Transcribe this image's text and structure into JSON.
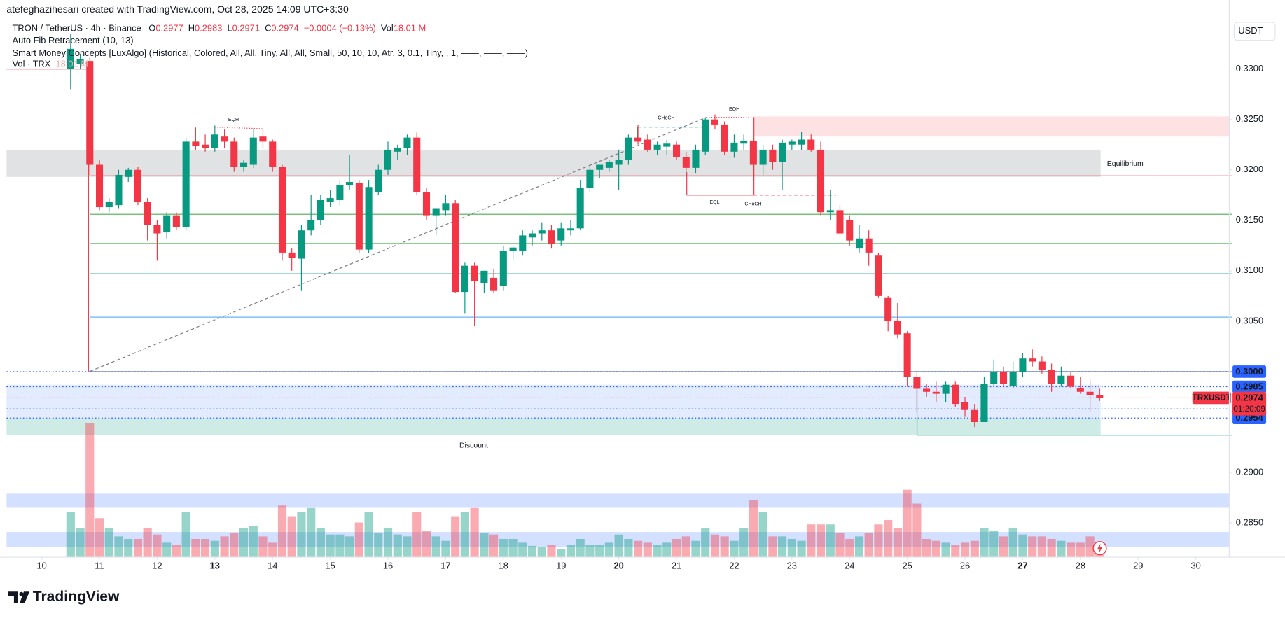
{
  "header": "atefeghazihesari created with TradingView.com, Oct 28, 2025 14:09 UTC+3:30",
  "chart_data": {
    "type": "candlestick",
    "legend": {
      "symbol": "TRON / TetherUS · 4h · Binance",
      "ohlc": [
        {
          "label": "O",
          "value": "0.2977"
        },
        {
          "label": "H",
          "value": "0.2983"
        },
        {
          "label": "L",
          "value": "0.2971"
        },
        {
          "label": "C",
          "value": "0.2974"
        }
      ],
      "change": "−0.0004 (−0.13%)",
      "vol_label": "Vol",
      "vol": "18.01 M",
      "indicators": [
        "Auto Fib Retracement (10, 13)",
        "Smart Money Concepts [LuxAlgo] (Historical, Colored, All, All, Tiny, All, All, Small, 50, 10, 10, Atr, 3, 0.1, Tiny, , 1, ——, ——, ——)"
      ],
      "volume_name": "Vol · TRX",
      "volume_value": "18.01 M"
    },
    "currency": "USDT",
    "brand": "TradingView",
    "up_color": "#089981",
    "down_color": "#f23645",
    "grid": false,
    "xlim": [
      9.39,
      30.58
    ],
    "xticks": [
      10,
      11,
      12,
      13,
      14,
      15,
      16,
      17,
      18,
      19,
      20,
      21,
      22,
      23,
      24,
      25,
      26,
      27,
      28,
      29,
      30
    ],
    "xticks_bold": [
      13,
      20,
      27
    ],
    "ylim": [
      0.2816,
      0.3352
    ],
    "yticks": [
      {
        "value": 0.33,
        "label": "0.3300"
      },
      {
        "value": 0.325,
        "label": "0.3250"
      },
      {
        "value": 0.32,
        "label": "0.3200"
      },
      {
        "value": 0.315,
        "label": "0.3150"
      },
      {
        "value": 0.31,
        "label": "0.3100"
      },
      {
        "value": 0.305,
        "label": "0.3050"
      },
      {
        "value": 0.29,
        "label": "0.2900"
      },
      {
        "value": 0.285,
        "label": "0.2850"
      }
    ],
    "x": [
      10.5,
      10.667,
      10.833,
      11,
      11.167,
      11.333,
      11.5,
      11.667,
      11.833,
      12,
      12.167,
      12.333,
      12.5,
      12.667,
      12.833,
      13,
      13.167,
      13.333,
      13.5,
      13.667,
      13.833,
      14,
      14.167,
      14.333,
      14.5,
      14.667,
      14.833,
      15,
      15.167,
      15.333,
      15.5,
      15.667,
      15.833,
      16,
      16.167,
      16.333,
      16.5,
      16.667,
      16.833,
      17,
      17.167,
      17.333,
      17.5,
      17.667,
      17.833,
      18,
      18.167,
      18.333,
      18.5,
      18.667,
      18.833,
      19,
      19.167,
      19.333,
      19.5,
      19.667,
      19.833,
      20,
      20.167,
      20.333,
      20.5,
      20.667,
      20.833,
      21,
      21.167,
      21.333,
      21.5,
      21.667,
      21.833,
      22,
      22.167,
      22.333,
      22.5,
      22.667,
      22.833,
      23,
      23.167,
      23.333,
      23.5,
      23.667,
      23.833,
      24,
      24.167,
      24.333,
      24.5,
      24.667,
      24.833,
      25,
      25.167,
      25.333,
      25.5,
      25.667,
      25.833,
      26,
      26.167,
      26.333,
      26.5,
      26.667,
      26.833,
      27,
      27.167,
      27.333,
      27.5,
      27.667,
      27.833,
      28,
      28.167,
      28.333
    ],
    "open": [
      0.33,
      0.3305,
      0.3308,
      0.3205,
      0.3163,
      0.3165,
      0.3193,
      0.32,
      0.3168,
      0.3145,
      0.3138,
      0.3155,
      0.3143,
      0.3228,
      0.3225,
      0.3222,
      0.3233,
      0.3228,
      0.3203,
      0.3205,
      0.3233,
      0.3228,
      0.3203,
      0.3118,
      0.3112,
      0.314,
      0.315,
      0.3168,
      0.317,
      0.3185,
      0.3187,
      0.3121,
      0.3178,
      0.32,
      0.3218,
      0.3222,
      0.3232,
      0.3178,
      0.3155,
      0.316,
      0.3167,
      0.3079,
      0.3105,
      0.3088,
      0.3093,
      0.3085,
      0.312,
      0.312,
      0.3133,
      0.3137,
      0.314,
      0.313,
      0.314,
      0.3142,
      0.3182,
      0.32,
      0.3202,
      0.3205,
      0.321,
      0.3232,
      0.323,
      0.322,
      0.3223,
      0.3225,
      0.3213,
      0.3202,
      0.3218,
      0.325,
      0.3245,
      0.3218,
      0.3226,
      0.3229,
      0.3205,
      0.322,
      0.3208,
      0.3225,
      0.3225,
      0.323,
      0.322,
      0.3158,
      0.316,
      0.315,
      0.3122,
      0.3132,
      0.3115,
      0.3073,
      0.305,
      0.3038,
      0.2995,
      0.2983,
      0.298,
      0.2978,
      0.2987,
      0.297,
      0.2962,
      0.295,
      0.2988,
      0.3,
      0.2986,
      0.3,
      0.3013,
      0.301,
      0.3002,
      0.2988,
      0.2996,
      0.2984,
      0.298,
      0.2977
    ],
    "high": [
      0.3335,
      0.3315,
      0.3312,
      0.321,
      0.3172,
      0.32,
      0.3202,
      0.3203,
      0.3172,
      0.315,
      0.3158,
      0.3158,
      0.3232,
      0.3242,
      0.3235,
      0.3244,
      0.324,
      0.3232,
      0.321,
      0.324,
      0.324,
      0.323,
      0.3205,
      0.3122,
      0.3145,
      0.3175,
      0.3175,
      0.318,
      0.319,
      0.3215,
      0.319,
      0.319,
      0.3205,
      0.3228,
      0.3225,
      0.3235,
      0.3237,
      0.3182,
      0.316,
      0.3175,
      0.317,
      0.3108,
      0.3108,
      0.31,
      0.3102,
      0.3125,
      0.3125,
      0.314,
      0.314,
      0.3148,
      0.3145,
      0.3148,
      0.315,
      0.319,
      0.3205,
      0.3205,
      0.321,
      0.322,
      0.3235,
      0.3245,
      0.3235,
      0.3228,
      0.323,
      0.3228,
      0.3218,
      0.3225,
      0.3252,
      0.3255,
      0.3248,
      0.3235,
      0.3235,
      0.3232,
      0.3225,
      0.3225,
      0.323,
      0.323,
      0.3238,
      0.3235,
      0.3228,
      0.318,
      0.3165,
      0.3155,
      0.3145,
      0.314,
      0.3118,
      0.3075,
      0.3068,
      0.304,
      0.3,
      0.2988,
      0.299,
      0.299,
      0.299,
      0.2975,
      0.2968,
      0.2995,
      0.3012,
      0.3005,
      0.301,
      0.3018,
      0.3022,
      0.3015,
      0.3008,
      0.3005,
      0.3,
      0.2995,
      0.2992,
      0.2983
    ],
    "low": [
      0.328,
      0.33,
      0.3195,
      0.316,
      0.3158,
      0.3162,
      0.3188,
      0.3165,
      0.313,
      0.311,
      0.3132,
      0.314,
      0.314,
      0.322,
      0.3218,
      0.3218,
      0.3222,
      0.3198,
      0.3198,
      0.3202,
      0.3222,
      0.3198,
      0.311,
      0.31,
      0.308,
      0.3135,
      0.3145,
      0.3163,
      0.3165,
      0.318,
      0.3118,
      0.3118,
      0.3175,
      0.3195,
      0.321,
      0.3215,
      0.3175,
      0.315,
      0.3135,
      0.3155,
      0.3078,
      0.3058,
      0.3045,
      0.3078,
      0.3078,
      0.308,
      0.311,
      0.3115,
      0.3125,
      0.313,
      0.3122,
      0.3125,
      0.3135,
      0.314,
      0.3178,
      0.3192,
      0.3198,
      0.318,
      0.3205,
      0.3225,
      0.3218,
      0.3215,
      0.3215,
      0.321,
      0.3195,
      0.3197,
      0.3215,
      0.324,
      0.3215,
      0.3212,
      0.322,
      0.319,
      0.3195,
      0.32,
      0.318,
      0.322,
      0.322,
      0.3218,
      0.3155,
      0.315,
      0.3135,
      0.3125,
      0.3118,
      0.3105,
      0.3073,
      0.304,
      0.3033,
      0.2985,
      0.296,
      0.2975,
      0.297,
      0.297,
      0.2965,
      0.2955,
      0.2945,
      0.295,
      0.2985,
      0.2985,
      0.2983,
      0.2995,
      0.3005,
      0.2998,
      0.298,
      0.2985,
      0.2983,
      0.2978,
      0.296,
      0.2971
    ],
    "close": [
      0.332,
      0.331,
      0.3205,
      0.3163,
      0.3168,
      0.3195,
      0.32,
      0.3168,
      0.3145,
      0.3137,
      0.3155,
      0.3143,
      0.3228,
      0.3224,
      0.3222,
      0.3235,
      0.3228,
      0.3203,
      0.3207,
      0.3232,
      0.3228,
      0.3203,
      0.3118,
      0.3113,
      0.314,
      0.315,
      0.317,
      0.3172,
      0.3185,
      0.3188,
      0.3121,
      0.3183,
      0.32,
      0.322,
      0.3222,
      0.3232,
      0.3178,
      0.3155,
      0.3162,
      0.3167,
      0.3079,
      0.3105,
      0.309,
      0.31,
      0.308,
      0.312,
      0.3123,
      0.3135,
      0.3137,
      0.314,
      0.3127,
      0.3142,
      0.3142,
      0.3182,
      0.32,
      0.3205,
      0.3208,
      0.321,
      0.3232,
      0.3228,
      0.322,
      0.3225,
      0.3226,
      0.3213,
      0.3202,
      0.322,
      0.325,
      0.3245,
      0.3218,
      0.3227,
      0.3229,
      0.3205,
      0.322,
      0.3208,
      0.3227,
      0.3228,
      0.323,
      0.322,
      0.3158,
      0.316,
      0.3137,
      0.313,
      0.3132,
      0.3118,
      0.3075,
      0.305,
      0.3037,
      0.2995,
      0.2983,
      0.298,
      0.2978,
      0.2987,
      0.2968,
      0.2962,
      0.295,
      0.2988,
      0.3,
      0.2988,
      0.3,
      0.3013,
      0.301,
      0.3002,
      0.2988,
      0.2996,
      0.2985,
      0.298,
      0.2977,
      0.2974
    ],
    "volume": [
      72,
      46,
      213,
      62,
      46,
      33,
      29,
      29,
      46,
      36,
      23,
      20,
      72,
      29,
      29,
      26,
      33,
      39,
      46,
      49,
      33,
      23,
      82,
      65,
      72,
      78,
      46,
      36,
      36,
      33,
      55,
      72,
      39,
      46,
      36,
      33,
      72,
      42,
      33,
      26,
      65,
      72,
      78,
      39,
      36,
      29,
      29,
      23,
      18,
      16,
      20,
      13,
      20,
      29,
      20,
      20,
      23,
      36,
      29,
      26,
      23,
      20,
      23,
      29,
      33,
      26,
      46,
      36,
      33,
      26,
      46,
      91,
      72,
      33,
      33,
      29,
      26,
      52,
      52,
      52,
      39,
      29,
      33,
      39,
      52,
      59,
      46,
      107,
      85,
      29,
      26,
      23,
      20,
      23,
      26,
      46,
      42,
      33,
      46,
      36,
      33,
      33,
      29,
      26,
      23,
      23,
      33,
      18.01
    ],
    "zones": [
      {
        "from": 9.39,
        "to": 28.35,
        "low": 0.3193,
        "high": 0.322,
        "color": "rgba(120,123,134,0.22)"
      },
      {
        "from": 22.34,
        "to": 30.58,
        "low": 0.3233,
        "high": 0.3253,
        "color": "rgba(242,54,69,0.15)"
      },
      {
        "from": 9.39,
        "to": 28.35,
        "low": 0.2954,
        "high": 0.2987,
        "color": "rgba(41,98,255,0.13)"
      },
      {
        "from": 9.39,
        "to": 28.35,
        "low": 0.2937,
        "high": 0.2954,
        "color": "rgba(8,153,129,0.2)"
      },
      {
        "from": 9.39,
        "to": 30.58,
        "low": 0.2865,
        "high": 0.2879,
        "color": "rgba(41,98,255,0.2)"
      },
      {
        "from": 9.39,
        "to": 30.58,
        "low": 0.2826,
        "high": 0.2841,
        "color": "rgba(41,98,255,0.2)"
      }
    ],
    "levels": [
      {
        "value": 0.3194,
        "color": "#f23645"
      },
      {
        "value": 0.3156,
        "color": "#4caf50"
      },
      {
        "value": 0.3127,
        "color": "#4caf50"
      },
      {
        "value": 0.3097,
        "color": "#089981"
      },
      {
        "value": 0.3054,
        "color": "#64b5f6"
      },
      {
        "value": 0.3,
        "color": "#787b86"
      }
    ],
    "price_labels": [
      {
        "value": 0.3,
        "label": "0.3000"
      },
      {
        "value": 0.2985,
        "label": "0.2985"
      },
      {
        "value": 0.2963,
        "label": "0.2963"
      },
      {
        "value": 0.2954,
        "label": "0.2954"
      }
    ],
    "price_label_color": "#2962ff",
    "last_price": {
      "symbol": "TRXUSDT",
      "value": 0.2974,
      "label": "0.2974",
      "countdown": "01:20:09"
    },
    "annotations": [
      "Equilibrium",
      "Discount",
      "EQH",
      "EQH",
      "CHoCH",
      "CHoCH",
      "EQL"
    ]
  }
}
